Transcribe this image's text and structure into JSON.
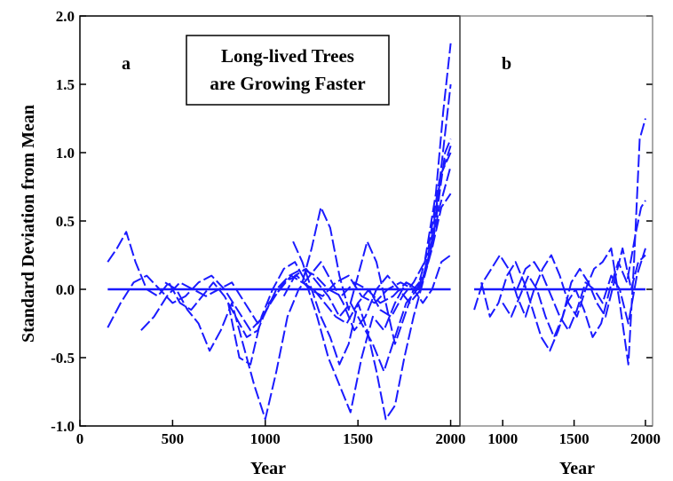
{
  "chart_data": [
    {
      "panel": "a",
      "type": "line",
      "title_lines": [
        "Long-lived Trees",
        "are Growing Faster"
      ],
      "xlabel": "Year",
      "ylabel": "Standard Deviation from Mean",
      "xlim": [
        0,
        2050
      ],
      "ylim": [
        -1.0,
        2.0
      ],
      "xticks": [
        0,
        500,
        1000,
        1500,
        2000
      ],
      "yticks": [
        -1.0,
        -0.5,
        0.0,
        0.5,
        1.0,
        1.5,
        2.0
      ],
      "ytick_labels": [
        "-1.0",
        "-0.5",
        "0.0",
        "0.5",
        "1.0",
        "1.5",
        "2.0"
      ],
      "mean_line": {
        "x": [
          150,
          2000
        ],
        "y": 0.0
      },
      "series": [
        {
          "x": [
            150,
            200,
            250,
            300,
            360,
            420,
            480,
            540,
            600,
            660,
            720,
            780,
            840,
            900,
            960,
            1020,
            1080,
            1140,
            1200,
            1260,
            1320,
            1380,
            1440,
            1500,
            1560,
            1620,
            1680,
            1740,
            1800,
            1860,
            1920,
            1960,
            2000
          ],
          "y": [
            0.2,
            0.3,
            0.42,
            0.2,
            0.0,
            -0.05,
            0.05,
            -0.1,
            -0.15,
            -0.05,
            0.05,
            -0.05,
            -0.2,
            -0.35,
            -0.3,
            -0.1,
            0.0,
            0.1,
            0.05,
            0.0,
            -0.1,
            -0.2,
            -0.25,
            -0.1,
            0.0,
            -0.15,
            -0.2,
            -0.05,
            0.05,
            0.2,
            0.7,
            1.3,
            1.8
          ]
        },
        {
          "x": [
            150,
            220,
            290,
            360,
            430,
            500,
            570,
            640,
            710,
            780,
            850,
            920,
            990,
            1060,
            1130,
            1200,
            1270,
            1340,
            1410,
            1480,
            1550,
            1620,
            1690,
            1760,
            1830,
            1900,
            1950,
            2000
          ],
          "y": [
            -0.28,
            -0.1,
            0.05,
            0.1,
            0.0,
            -0.1,
            -0.05,
            0.05,
            0.1,
            0.0,
            -0.15,
            -0.3,
            -0.2,
            0.0,
            0.1,
            0.15,
            0.1,
            0.0,
            -0.05,
            0.05,
            0.0,
            -0.1,
            -0.05,
            0.05,
            0.0,
            0.3,
            0.9,
            1.5
          ]
        },
        {
          "x": [
            330,
            400,
            470,
            540,
            610,
            680,
            750,
            820,
            890,
            960,
            1030,
            1100,
            1170,
            1240,
            1310,
            1380,
            1450,
            1520,
            1590,
            1660,
            1730,
            1800,
            1860,
            1920,
            1970,
            2000
          ],
          "y": [
            -0.3,
            -0.2,
            -0.05,
            0.05,
            0.0,
            -0.05,
            0.0,
            0.05,
            -0.1,
            -0.25,
            -0.1,
            0.05,
            0.1,
            0.0,
            -0.05,
            0.05,
            0.1,
            -0.05,
            -0.1,
            0.0,
            0.05,
            0.0,
            0.1,
            0.5,
            1.0,
            1.1
          ]
        },
        {
          "x": [
            460,
            520,
            580,
            640,
            700,
            760,
            820,
            880,
            940,
            1000,
            1060,
            1120,
            1180,
            1240,
            1300,
            1360,
            1420,
            1480,
            1540,
            1600,
            1660,
            1720,
            1780,
            1840,
            1900,
            1950,
            2000
          ],
          "y": [
            0.05,
            0.0,
            -0.15,
            -0.25,
            -0.45,
            -0.3,
            -0.1,
            -0.4,
            -0.7,
            -0.95,
            -0.6,
            -0.2,
            0.0,
            0.1,
            0.2,
            0.05,
            -0.1,
            -0.3,
            -0.2,
            0.0,
            0.1,
            0.0,
            -0.1,
            0.0,
            0.4,
            0.85,
            1.0
          ]
        },
        {
          "x": [
            800,
            860,
            920,
            980,
            1040,
            1100,
            1160,
            1220,
            1280,
            1340,
            1400,
            1460,
            1520,
            1580,
            1640,
            1700,
            1760,
            1820,
            1880,
            1940,
            2000
          ],
          "y": [
            -0.1,
            -0.5,
            -0.55,
            -0.2,
            0.0,
            0.15,
            0.2,
            0.05,
            -0.2,
            -0.5,
            -0.7,
            -0.9,
            -0.5,
            -0.2,
            -0.3,
            -0.1,
            0.05,
            0.0,
            0.2,
            0.6,
            0.9
          ]
        },
        {
          "x": [
            1150,
            1200,
            1250,
            1300,
            1350,
            1400,
            1450,
            1500,
            1550,
            1600,
            1650,
            1700,
            1750,
            1800,
            1850,
            1900,
            1950,
            2000
          ],
          "y": [
            0.35,
            0.2,
            0.0,
            -0.2,
            -0.35,
            -0.55,
            -0.4,
            -0.1,
            -0.3,
            -0.6,
            -0.95,
            -0.85,
            -0.5,
            -0.2,
            0.05,
            0.3,
            0.6,
            0.7
          ]
        },
        {
          "x": [
            1200,
            1250,
            1300,
            1350,
            1400,
            1450,
            1500,
            1550,
            1600,
            1650,
            1700,
            1750,
            1800,
            1850,
            1900,
            1950,
            2000
          ],
          "y": [
            0.05,
            0.3,
            0.6,
            0.45,
            0.1,
            -0.15,
            0.1,
            0.35,
            0.2,
            -0.1,
            -0.4,
            -0.2,
            0.0,
            -0.1,
            0.0,
            0.2,
            0.25
          ]
        },
        {
          "x": [
            1100,
            1160,
            1220,
            1280,
            1340,
            1400,
            1460,
            1520,
            1580,
            1640,
            1700,
            1760,
            1820,
            1880,
            1940,
            2000
          ],
          "y": [
            -0.05,
            0.1,
            0.15,
            0.05,
            -0.05,
            -0.2,
            -0.1,
            -0.25,
            -0.4,
            -0.6,
            -0.35,
            -0.1,
            0.0,
            0.3,
            0.8,
            1.05
          ]
        }
      ]
    },
    {
      "panel": "b",
      "type": "line",
      "xlabel": "Year",
      "xlim": [
        700,
        2050
      ],
      "ylim": [
        -1.0,
        2.0
      ],
      "xticks": [
        1000,
        1500,
        2000
      ],
      "mean_line": {
        "x": [
          800,
          2000
        ],
        "y": 0.0
      },
      "series": [
        {
          "x": [
            800,
            860,
            920,
            980,
            1040,
            1100,
            1160,
            1220,
            1280,
            1340,
            1400,
            1460,
            1520,
            1580,
            1640,
            1700,
            1760,
            1820,
            1880,
            1920,
            1960,
            2000
          ],
          "y": [
            -0.15,
            0.05,
            0.15,
            0.25,
            0.15,
            -0.05,
            -0.2,
            0.0,
            0.15,
            0.25,
            0.1,
            -0.1,
            -0.2,
            0.0,
            0.15,
            0.2,
            0.3,
            -0.1,
            -0.55,
            0.2,
            1.1,
            1.25
          ]
        },
        {
          "x": [
            850,
            910,
            970,
            1030,
            1090,
            1150,
            1210,
            1270,
            1330,
            1390,
            1450,
            1510,
            1570,
            1630,
            1690,
            1750,
            1810,
            1870,
            1930,
            1970,
            2000
          ],
          "y": [
            0.05,
            -0.2,
            -0.1,
            0.1,
            0.2,
            0.05,
            -0.15,
            -0.35,
            -0.45,
            -0.3,
            -0.1,
            0.0,
            -0.15,
            -0.35,
            -0.25,
            0.0,
            0.2,
            0.05,
            0.4,
            0.6,
            0.65
          ]
        },
        {
          "x": [
            1000,
            1060,
            1120,
            1180,
            1240,
            1300,
            1360,
            1420,
            1480,
            1540,
            1600,
            1660,
            1720,
            1780,
            1840,
            1900,
            1950,
            2000
          ],
          "y": [
            -0.1,
            -0.2,
            -0.05,
            0.1,
            0.0,
            -0.2,
            -0.35,
            -0.2,
            0.05,
            0.15,
            0.05,
            -0.1,
            -0.2,
            0.05,
            0.3,
            0.0,
            0.2,
            0.25
          ]
        },
        {
          "x": [
            1100,
            1160,
            1220,
            1280,
            1340,
            1400,
            1460,
            1520,
            1580,
            1640,
            1700,
            1760,
            1820,
            1880,
            1940,
            2000
          ],
          "y": [
            0.0,
            0.15,
            0.2,
            0.1,
            -0.05,
            -0.2,
            -0.3,
            -0.15,
            0.05,
            0.0,
            -0.1,
            0.1,
            0.0,
            -0.25,
            0.1,
            0.3
          ]
        }
      ]
    }
  ]
}
